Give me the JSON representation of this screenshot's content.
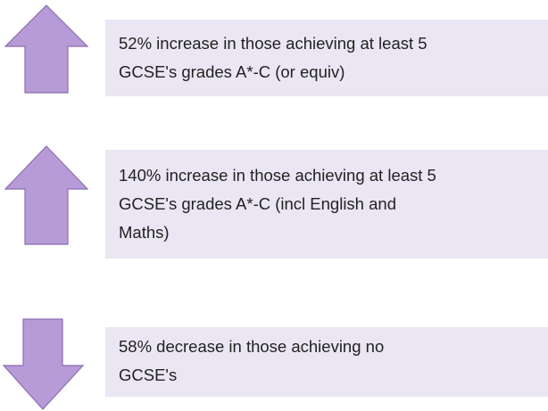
{
  "items": [
    {
      "lines": [
        "52% increase in those achieving at least 5",
        "GCSE's grades A*-C (or equiv)"
      ]
    },
    {
      "lines": [
        "140% increase in those achieving at least 5",
        "GCSE's grades A*-C (incl English and",
        "Maths)"
      ]
    },
    {
      "lines": [
        "58% decrease in those achieving no",
        "GCSE's"
      ]
    }
  ]
}
